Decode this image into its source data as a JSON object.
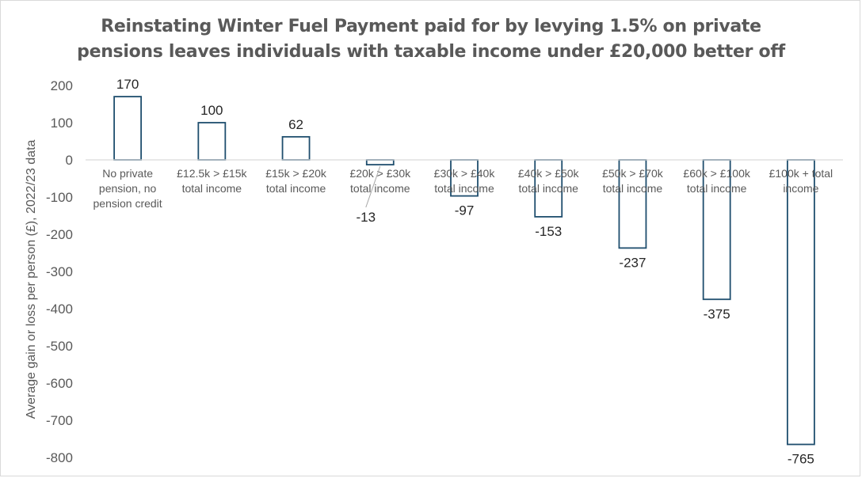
{
  "chart_data": {
    "type": "bar",
    "title": "Reinstating Winter Fuel Payment paid for by levying 1.5% on private pensions leaves individuals with taxable income under £20,000 better off",
    "title_lines": [
      "Reinstating Winter Fuel Payment paid for by levying 1.5% on private",
      "pensions leaves individuals with taxable income under £20,000 better off"
    ],
    "xlabel": "",
    "ylabel": "Average gain or loss per person (£), 2022/23 data",
    "ylim": [
      -800,
      200
    ],
    "yticks": [
      "200",
      "100",
      "0",
      "-100",
      "-200",
      "-300",
      "-400",
      "-500",
      "-600",
      "-700",
      "-800"
    ],
    "ytick_values": [
      200,
      100,
      0,
      -100,
      -200,
      -300,
      -400,
      -500,
      -600,
      -700,
      -800
    ],
    "categories": [
      [
        "No private",
        "pension, no",
        "pension credit"
      ],
      [
        "£12.5k > £15k",
        "total income"
      ],
      [
        "£15k > £20k",
        "total income"
      ],
      [
        "£20k > £30k",
        "total income"
      ],
      [
        "£30k > £40k",
        "total income"
      ],
      [
        "£40k > £50k",
        "total income"
      ],
      [
        "£50k > £70k",
        "total income"
      ],
      [
        "£60k > £100k",
        "total income"
      ],
      [
        "£100k + total",
        "income"
      ]
    ],
    "values": [
      170,
      100,
      62,
      -13,
      -97,
      -153,
      -237,
      -375,
      -765
    ],
    "data_labels": [
      "170",
      "100",
      "62",
      "-13",
      "-97",
      "-153",
      "-237",
      "-375",
      "-765"
    ],
    "bar_fill": "#ffffff",
    "bar_stroke": "#1f4e6e",
    "axis_color": "#d9d9d9",
    "grid": false,
    "legend": "none"
  }
}
